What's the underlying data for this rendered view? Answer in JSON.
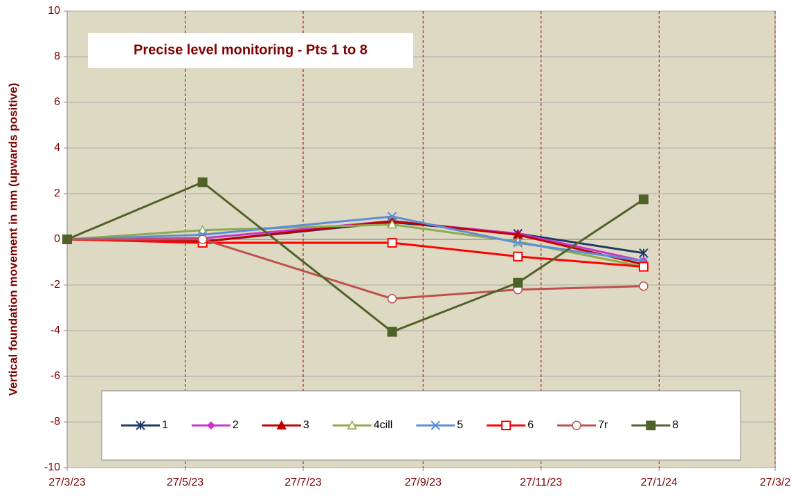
{
  "chart_data": {
    "type": "line",
    "title": "Precise level monitoring - Pts 1 to 8",
    "y_label": "Vertical foundation movement in mm (upwards positive)",
    "x": [
      "2023-03-27",
      "2023-06-05",
      "2023-09-11",
      "2023-11-15",
      "2024-01-19"
    ],
    "xlim": [
      "2023-03-27",
      "2024-03-27"
    ],
    "xticks": [
      {
        "value": "2023-03-27",
        "label": "27/3/23"
      },
      {
        "value": "2023-05-27",
        "label": "27/5/23"
      },
      {
        "value": "2023-07-27",
        "label": "27/7/23"
      },
      {
        "value": "2023-09-27",
        "label": "27/9/23"
      },
      {
        "value": "2023-11-27",
        "label": "27/11/23"
      },
      {
        "value": "2024-01-27",
        "label": "27/1/24"
      },
      {
        "value": "2024-03-27",
        "label": "27/3/2"
      }
    ],
    "ylim": [
      -10,
      10
    ],
    "yticks": [
      -10,
      -8,
      -6,
      -4,
      -2,
      0,
      2,
      4,
      6,
      8,
      10
    ],
    "grid": true,
    "legend": "bottom",
    "series": [
      {
        "name": "1",
        "color": "#1f3864",
        "marker": "star",
        "values": [
          0,
          -0.1,
          0.75,
          0.25,
          -0.6
        ]
      },
      {
        "name": "2",
        "color": "#cc33cc",
        "marker": "diamond",
        "values": [
          0,
          0.05,
          0.8,
          0.25,
          -0.95
        ]
      },
      {
        "name": "3",
        "color": "#c00000",
        "marker": "triangle",
        "values": [
          0,
          -0.1,
          0.8,
          0.2,
          -1.1
        ]
      },
      {
        "name": "4cill",
        "color": "#8faa4c",
        "marker": "open-triangle",
        "values": [
          0,
          0.4,
          0.65,
          -0.1,
          -1.2
        ]
      },
      {
        "name": "5",
        "color": "#5b8fd6",
        "marker": "asterisk",
        "values": [
          0,
          0.2,
          1.0,
          -0.15,
          -0.95
        ]
      },
      {
        "name": "6",
        "color": "#ff0000",
        "marker": "open-square",
        "values": [
          0,
          -0.15,
          -0.15,
          -0.75,
          -1.2
        ]
      },
      {
        "name": "7r",
        "color": "#c0504d",
        "marker": "open-circle",
        "values": [
          0,
          0.0,
          -2.6,
          -2.2,
          -2.05
        ]
      },
      {
        "name": "8",
        "color": "#4f6228",
        "marker": "square",
        "values": [
          0,
          2.5,
          -4.05,
          -1.9,
          1.75
        ]
      }
    ]
  }
}
